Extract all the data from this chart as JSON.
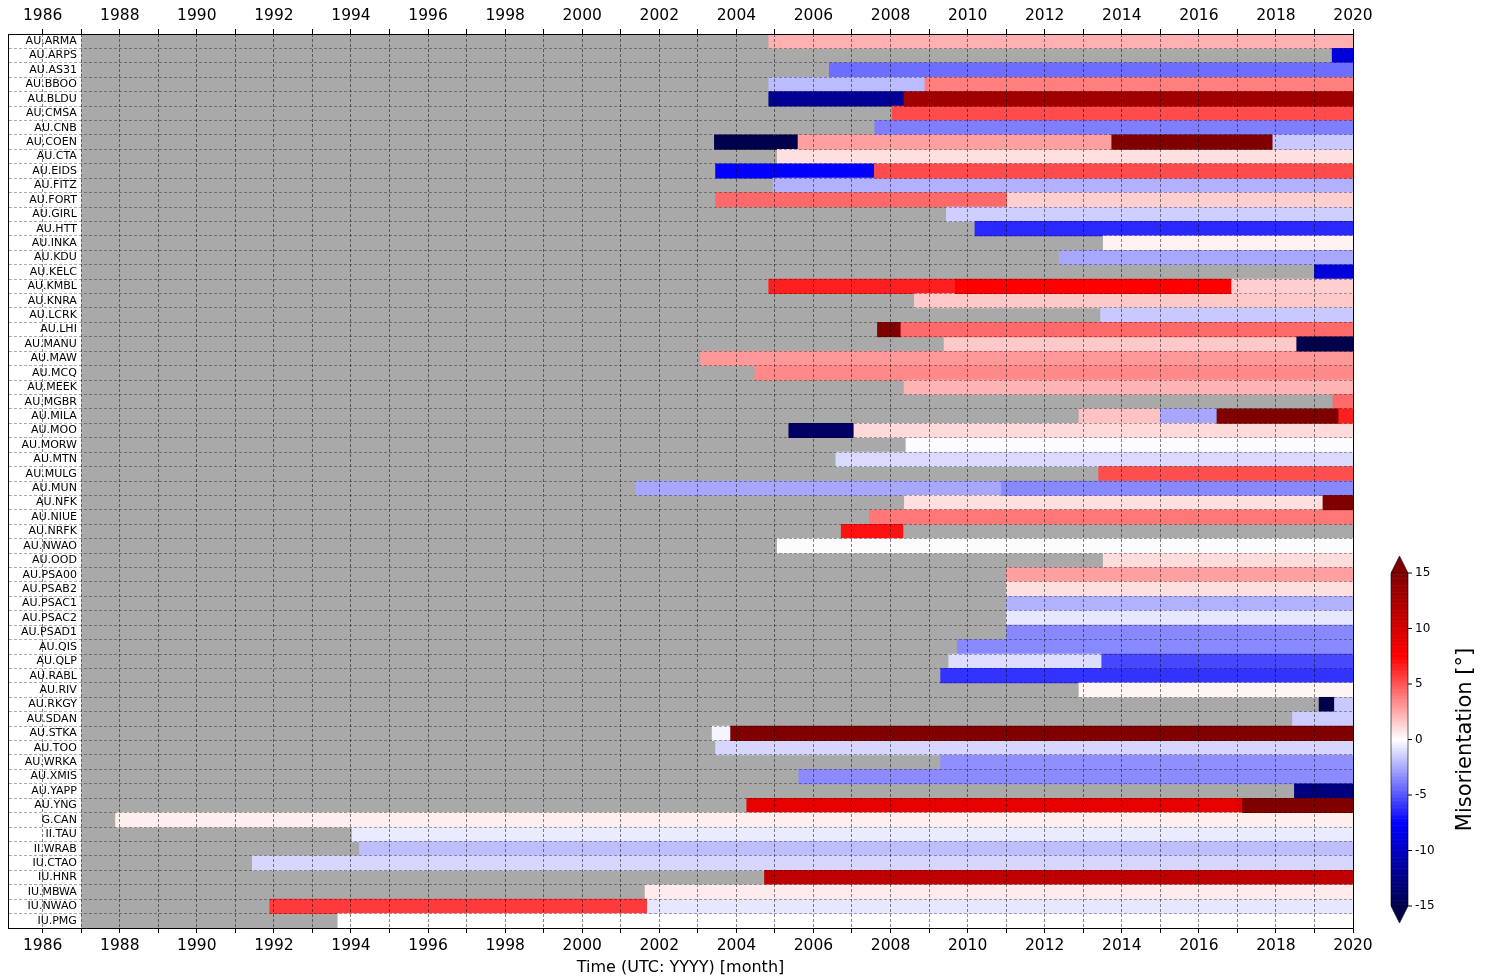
{
  "chart_data": {
    "type": "bar",
    "orientation": "horizontal",
    "xlabel": "Time (UTC: YYYY) [month]",
    "clabel": "Misorientation [°]",
    "grid": true,
    "categories": [
      "AU.ARMA",
      "AU.ARPS",
      "AU.AS31",
      "AU.BBOO",
      "AU.BLDU",
      "AU.CMSA",
      "AU.CNB",
      "AU.COEN",
      "AU.CTA",
      "AU.EIDS",
      "AU.FITZ",
      "AU.FORT",
      "AU.GIRL",
      "AU.HTT",
      "AU.INKA",
      "AU.KDU",
      "AU.KELC",
      "AU.KMBL",
      "AU.KNRA",
      "AU.LCRK",
      "AU.LHI",
      "AU.MANU",
      "AU.MAW",
      "AU.MCQ",
      "AU.MEEK",
      "AU.MGBR",
      "AU.MILA",
      "AU.MOO",
      "AU.MORW",
      "AU.MTN",
      "AU.MULG",
      "AU.MUN",
      "AU.NFK",
      "AU.NIUE",
      "AU.NRFK",
      "AU.NWAO",
      "AU.OOD",
      "AU.PSA00",
      "AU.PSAB2",
      "AU.PSAC1",
      "AU.PSAC2",
      "AU.PSAD1",
      "AU.QIS",
      "AU.QLP",
      "AU.RABL",
      "AU.RIV",
      "AU.RKGY",
      "AU.SDAN",
      "AU.STKA",
      "AU.TOO",
      "AU.WRKA",
      "AU.XMIS",
      "AU.YAPP",
      "AU.YNG",
      "G.CAN",
      "II.TAU",
      "II.WRAB",
      "IU.CTAO",
      "IU.HNR",
      "IU.MBWA",
      "IU.NWAO",
      "IU.PMG"
    ],
    "xlim": [
      1985.1,
      2020
    ],
    "xticks": [
      1986,
      {
        "value": 1987,
        "label": null
      },
      1988,
      {
        "value": 1989,
        "label": null
      },
      1990,
      {
        "value": 1991,
        "label": null
      },
      1992,
      {
        "value": 1993,
        "label": null
      },
      1994,
      {
        "value": 1995,
        "label": null
      },
      1996,
      {
        "value": 1997,
        "label": null
      },
      1998,
      {
        "value": 1999,
        "label": null
      },
      2000,
      {
        "value": 2001,
        "label": null
      },
      2002,
      {
        "value": 2003,
        "label": null
      },
      2004,
      {
        "value": 2005,
        "label": null
      },
      2006,
      {
        "value": 2007,
        "label": null
      },
      2008,
      {
        "value": 2009,
        "label": null
      },
      2010,
      {
        "value": 2011,
        "label": null
      },
      2012,
      {
        "value": 2013,
        "label": null
      },
      2014,
      {
        "value": 2015,
        "label": null
      },
      2016,
      {
        "value": 2017,
        "label": null
      },
      2018,
      {
        "value": 2019,
        "label": null
      },
      2020
    ],
    "x2lim": [
      1985.1,
      2020
    ],
    "x2ticks": [
      1986,
      {
        "value": 1987,
        "label": null
      },
      1988,
      {
        "value": 1989,
        "label": null
      },
      1990,
      {
        "value": 1991,
        "label": null
      },
      1992,
      {
        "value": 1993,
        "label": null
      },
      1994,
      {
        "value": 1995,
        "label": null
      },
      1996,
      {
        "value": 1997,
        "label": null
      },
      1998,
      {
        "value": 1999,
        "label": null
      },
      2000,
      {
        "value": 2001,
        "label": null
      },
      2002,
      {
        "value": 2003,
        "label": null
      },
      2004,
      {
        "value": 2005,
        "label": null
      },
      2006,
      {
        "value": 2007,
        "label": null
      },
      2008,
      {
        "value": 2009,
        "label": null
      },
      2010,
      {
        "value": 2011,
        "label": null
      },
      2012,
      {
        "value": 2013,
        "label": null
      },
      2014,
      {
        "value": 2015,
        "label": null
      },
      2016,
      {
        "value": 2017,
        "label": null
      },
      2018,
      {
        "value": 2019,
        "label": null
      },
      2020
    ],
    "clim": [
      -15,
      15
    ],
    "cticks": [
      -15,
      -10,
      -5,
      0,
      5,
      10,
      15
    ],
    "bands": [
      {
        "axis": "x",
        "from": 1987,
        "to": 2020,
        "color": "#a9a9a9"
      }
    ],
    "series": [
      {
        "base": [
          2004.84,
          2019.46,
          2006.41,
          2004.84,
          2004.84,
          2008.04,
          2007.59,
          2003.43,
          2005.06,
          2003.46,
          2004.95,
          2003.46,
          2009.45,
          2010.19,
          2013.52,
          2012.38,
          2019.0,
          2004.84,
          2008.62,
          2013.45,
          2007.66,
          2009.39,
          2003.07,
          2004.48,
          2008.35,
          2019.48,
          2012.89,
          2005.36,
          2008.4,
          2006.58,
          2013.4,
          2001.39,
          2008.36,
          2007.45,
          2006.72,
          2005.06,
          2013.52,
          2011.01,
          2011.01,
          2011.01,
          2011.01,
          2011.01,
          2009.73,
          2009.51,
          2009.3,
          2012.89,
          2019.12,
          2018.43,
          2003.37,
          2003.46,
          2009.3,
          2005.62,
          2018.48,
          2004.27,
          1987.89,
          1994.03,
          1994.22,
          1991.44,
          2004.73,
          2001.63,
          1991.89,
          1993.66
        ],
        "values": [
          15.16,
          0.54,
          13.59,
          4.05,
          3.51,
          11.96,
          12.41,
          2.17,
          14.94,
          4.12,
          15.05,
          7.57,
          10.55,
          9.81,
          6.48,
          7.62,
          1.0,
          4.84,
          11.38,
          6.55,
          0.61,
          9.15,
          16.93,
          15.52,
          11.65,
          0.52,
          2.11,
          1.69,
          11.6,
          13.42,
          6.6,
          9.49,
          10.86,
          12.55,
          1.6,
          14.94,
          6.48,
          8.99,
          8.99,
          8.99,
          8.99,
          8.99,
          10.27,
          3.97,
          10.7,
          7.11,
          0.4,
          1.57,
          0.48,
          16.54,
          10.7,
          14.38,
          1.52,
          12.86,
          32.11,
          25.97,
          25.78,
          28.56,
          15.27,
          18.37,
          9.8,
          26.34
        ],
        "colors": [
          "#ffb1b1",
          "#0000db",
          "#6d6dff",
          "#bbbbff",
          "#000094",
          "#ff4b4b",
          "#7e7eff",
          "#00004d",
          "#ffe0e0",
          "#0000ff",
          "#b1b1ff",
          "#ff6969",
          "#cfcfff",
          "#2929ff",
          "#fff1f1",
          "#a7a7ff",
          "#0000db",
          "#ff1f1f",
          "#ffc9c9",
          "#c9c9ff",
          "#800000",
          "#ffc9c9",
          "#ff9999",
          "#ff8888",
          "#ffb4b4",
          "#ff6969",
          "#ffc2c2",
          "#000064",
          "#fcfcff",
          "#dadaff",
          "#ff4e4e",
          "#a7a7ff",
          "#ffe0e0",
          "#ff7777",
          "#ff1111",
          "#fcfcff",
          "#ffdddd",
          "#ffa0a0",
          "#ffe0e0",
          "#b1b1ff",
          "#e7e7ff",
          "#8888ff",
          "#8888ff",
          "#ddddff",
          "#3333ff",
          "#fff5f5",
          "#00004d",
          "#ccccff",
          "#f5f5ff",
          "#d6d6ff",
          "#8f8fff",
          "#8b8bff",
          "#00007c",
          "#e70000",
          "#ffeeee",
          "#ebebff",
          "#bebeff",
          "#d6d6ff",
          "#be0000",
          "#ffebeb",
          "#ff3a3a",
          "#ffffff"
        ]
      },
      {
        "base": [
          null,
          null,
          null,
          2008.89,
          2008.35,
          null,
          null,
          2005.6,
          null,
          2007.58,
          null,
          2011.03,
          null,
          null,
          null,
          null,
          null,
          2009.68,
          null,
          null,
          2008.27,
          2018.54,
          null,
          null,
          null,
          null,
          2015.0,
          2007.05,
          null,
          null,
          null,
          2010.88,
          2019.22,
          null,
          null,
          null,
          null,
          null,
          null,
          null,
          null,
          null,
          null,
          2013.48,
          null,
          null,
          2019.52,
          null,
          2003.85,
          null,
          null,
          null,
          null,
          2017.13,
          null,
          null,
          null,
          null,
          null,
          null,
          2001.69,
          null
        ],
        "values": [
          null,
          null,
          null,
          11.11,
          11.65,
          null,
          null,
          8.14,
          null,
          12.42,
          null,
          8.97,
          null,
          null,
          null,
          null,
          null,
          7.17,
          null,
          null,
          11.73,
          1.46,
          null,
          null,
          null,
          null,
          1.47,
          12.95,
          null,
          null,
          null,
          9.12,
          0.78,
          null,
          null,
          null,
          null,
          null,
          null,
          null,
          null,
          null,
          null,
          6.52,
          null,
          null,
          0.48,
          null,
          16.15,
          null,
          null,
          null,
          null,
          2.87,
          null,
          null,
          null,
          null,
          null,
          null,
          18.31,
          null
        ],
        "colors": [
          null,
          null,
          null,
          "#ff7e7e",
          "#a10000",
          null,
          null,
          "#ffa0a0",
          null,
          "#ff4b4b",
          null,
          "#ffcfcf",
          null,
          null,
          null,
          null,
          null,
          "#ff0000",
          null,
          null,
          "#ff6969",
          "#00004d",
          null,
          null,
          null,
          null,
          "#a7a7ff",
          "#ffdada",
          null,
          null,
          null,
          "#8888ff",
          "#800000",
          null,
          null,
          null,
          null,
          null,
          null,
          null,
          null,
          null,
          null,
          "#4747ff",
          null,
          null,
          "#c9c9ff",
          null,
          "#800000",
          null,
          null,
          null,
          null,
          "#800000",
          null,
          null,
          null,
          null,
          null,
          null,
          "#e7e7ff",
          null
        ]
      },
      {
        "base": [
          null,
          null,
          null,
          null,
          null,
          null,
          null,
          2013.74,
          null,
          null,
          null,
          null,
          null,
          null,
          null,
          null,
          null,
          2016.85,
          null,
          null,
          null,
          null,
          null,
          null,
          null,
          null,
          2016.47,
          null,
          null,
          null,
          null,
          null,
          null,
          null,
          null,
          null,
          null,
          null,
          null,
          null,
          null,
          null,
          null,
          null,
          null,
          null,
          null,
          null,
          null,
          null,
          null,
          null,
          null,
          null,
          null,
          null,
          null,
          null,
          null,
          null,
          null,
          null
        ],
        "values": [
          null,
          null,
          null,
          null,
          null,
          null,
          null,
          4.18,
          null,
          null,
          null,
          null,
          null,
          null,
          null,
          null,
          null,
          3.15,
          null,
          null,
          null,
          null,
          null,
          null,
          null,
          null,
          3.16,
          null,
          null,
          null,
          null,
          null,
          null,
          null,
          null,
          null,
          null,
          null,
          null,
          null,
          null,
          null,
          null,
          null,
          null,
          null,
          null,
          null,
          null,
          null,
          null,
          null,
          null,
          null,
          null,
          null,
          null,
          null,
          null,
          null,
          null,
          null
        ],
        "colors": [
          null,
          null,
          null,
          null,
          null,
          null,
          null,
          "#800000",
          null,
          null,
          null,
          null,
          null,
          null,
          null,
          null,
          null,
          "#ffcfcf",
          null,
          null,
          null,
          null,
          null,
          null,
          null,
          null,
          "#800000",
          null,
          null,
          null,
          null,
          null,
          null,
          null,
          null,
          null,
          null,
          null,
          null,
          null,
          null,
          null,
          null,
          null,
          null,
          null,
          null,
          null,
          null,
          null,
          null,
          null,
          null,
          null,
          null,
          null,
          null,
          null,
          null,
          null,
          null,
          null
        ]
      },
      {
        "base": [
          null,
          null,
          null,
          null,
          null,
          null,
          null,
          2017.92,
          null,
          null,
          null,
          null,
          null,
          null,
          null,
          null,
          null,
          null,
          null,
          null,
          null,
          null,
          null,
          null,
          null,
          null,
          2019.63,
          null,
          null,
          null,
          null,
          null,
          null,
          null,
          null,
          null,
          null,
          null,
          null,
          null,
          null,
          null,
          null,
          null,
          null,
          null,
          null,
          null,
          null,
          null,
          null,
          null,
          null,
          null,
          null,
          null,
          null,
          null,
          null,
          null,
          null,
          null
        ],
        "values": [
          null,
          null,
          null,
          null,
          null,
          null,
          null,
          2.08,
          null,
          null,
          null,
          null,
          null,
          null,
          null,
          null,
          null,
          null,
          null,
          null,
          null,
          null,
          null,
          null,
          null,
          null,
          0.37,
          null,
          null,
          null,
          null,
          null,
          null,
          null,
          null,
          null,
          null,
          null,
          null,
          null,
          null,
          null,
          null,
          null,
          null,
          null,
          null,
          null,
          null,
          null,
          null,
          null,
          null,
          null,
          null,
          null,
          null,
          null,
          null,
          null,
          null,
          null
        ],
        "colors": [
          null,
          null,
          null,
          null,
          null,
          null,
          null,
          "#c9c9ff",
          null,
          null,
          null,
          null,
          null,
          null,
          null,
          null,
          null,
          null,
          null,
          null,
          null,
          null,
          null,
          null,
          null,
          null,
          "#ff1f1f",
          null,
          null,
          null,
          null,
          null,
          null,
          null,
          null,
          null,
          null,
          null,
          null,
          null,
          null,
          null,
          null,
          null,
          null,
          null,
          null,
          null,
          null,
          null,
          null,
          null,
          null,
          null,
          null,
          null,
          null,
          null,
          null,
          null,
          null,
          null
        ]
      }
    ]
  }
}
